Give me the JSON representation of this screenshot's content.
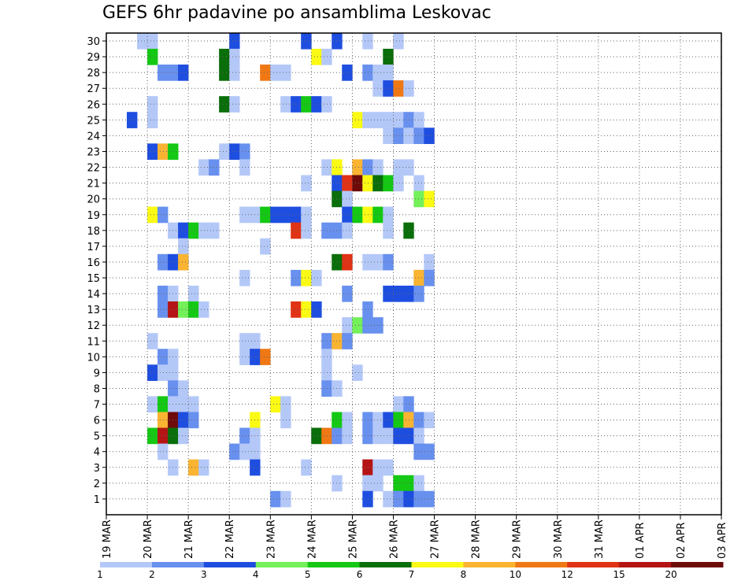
{
  "chart_data": {
    "type": "heatmap",
    "title": "GEFS 6hr padavine po ansamblima Leskovac",
    "x_tick_labels": [
      "19 MAR",
      "20 MAR",
      "21 MAR",
      "22 MAR",
      "23 MAR",
      "24 MAR",
      "25 MAR",
      "26 MAR",
      "27 MAR",
      "28 MAR",
      "29 MAR",
      "30 MAR",
      "31 MAR",
      "01 APR",
      "02 APR",
      "03 APR"
    ],
    "y_ticks": [
      1,
      2,
      3,
      4,
      5,
      6,
      7,
      8,
      9,
      10,
      11,
      12,
      13,
      14,
      15,
      16,
      17,
      18,
      19,
      20,
      21,
      22,
      23,
      24,
      25,
      26,
      27,
      28,
      29,
      30
    ],
    "ylim": [
      0,
      30.5
    ],
    "steps_per_day": 4,
    "grid": true,
    "legend": {
      "placement": "bottom",
      "labels": [
        "1",
        "2",
        "3",
        "4",
        "5",
        "6",
        "7",
        "8",
        "10",
        "12",
        "15",
        "20"
      ],
      "colors": [
        "#b4c8f8",
        "#6890ee",
        "#1e4ee0",
        "#73f05a",
        "#14c814",
        "#0a6e0a",
        "#fafa14",
        "#fab432",
        "#f07814",
        "#e03214",
        "#b41414",
        "#6e0a0a"
      ]
    },
    "cells": [
      [
        30,
        3,
        1
      ],
      [
        30,
        4,
        1
      ],
      [
        30,
        12,
        3
      ],
      [
        30,
        19,
        3
      ],
      [
        30,
        22,
        3
      ],
      [
        30,
        25,
        1
      ],
      [
        30,
        28,
        1
      ],
      [
        29,
        4,
        5
      ],
      [
        29,
        11,
        6
      ],
      [
        29,
        12,
        1
      ],
      [
        29,
        20,
        7
      ],
      [
        29,
        21,
        1
      ],
      [
        29,
        27,
        6
      ],
      [
        28,
        5,
        2
      ],
      [
        28,
        6,
        2
      ],
      [
        28,
        7,
        3
      ],
      [
        28,
        11,
        6
      ],
      [
        28,
        12,
        1
      ],
      [
        28,
        15,
        10
      ],
      [
        28,
        16,
        1
      ],
      [
        28,
        17,
        1
      ],
      [
        28,
        23,
        3
      ],
      [
        28,
        25,
        2
      ],
      [
        28,
        26,
        1
      ],
      [
        28,
        27,
        1
      ],
      [
        27,
        26,
        1
      ],
      [
        27,
        27,
        3
      ],
      [
        27,
        28,
        10
      ],
      [
        27,
        29,
        1
      ],
      [
        26,
        4,
        1
      ],
      [
        26,
        11,
        6
      ],
      [
        26,
        12,
        1
      ],
      [
        26,
        17,
        1
      ],
      [
        26,
        18,
        3
      ],
      [
        26,
        19,
        5
      ],
      [
        26,
        20,
        3
      ],
      [
        26,
        21,
        1
      ],
      [
        25,
        2,
        3
      ],
      [
        25,
        4,
        1
      ],
      [
        25,
        24,
        7
      ],
      [
        25,
        25,
        1
      ],
      [
        25,
        26,
        1
      ],
      [
        25,
        27,
        1
      ],
      [
        25,
        28,
        1
      ],
      [
        25,
        29,
        2
      ],
      [
        25,
        30,
        1
      ],
      [
        24,
        27,
        1
      ],
      [
        24,
        28,
        2
      ],
      [
        24,
        29,
        1
      ],
      [
        24,
        30,
        2
      ],
      [
        24,
        31,
        3
      ],
      [
        23,
        4,
        3
      ],
      [
        23,
        5,
        8
      ],
      [
        23,
        6,
        5
      ],
      [
        23,
        11,
        1
      ],
      [
        23,
        12,
        3
      ],
      [
        23,
        13,
        2
      ],
      [
        22,
        9,
        1
      ],
      [
        22,
        10,
        2
      ],
      [
        22,
        13,
        1
      ],
      [
        22,
        21,
        1
      ],
      [
        22,
        22,
        7
      ],
      [
        22,
        24,
        8
      ],
      [
        22,
        25,
        2
      ],
      [
        22,
        26,
        1
      ],
      [
        22,
        28,
        1
      ],
      [
        22,
        29,
        1
      ],
      [
        21,
        19,
        1
      ],
      [
        21,
        22,
        3
      ],
      [
        21,
        23,
        12
      ],
      [
        21,
        24,
        20
      ],
      [
        21,
        25,
        7
      ],
      [
        21,
        26,
        6
      ],
      [
        21,
        27,
        5
      ],
      [
        21,
        28,
        1
      ],
      [
        21,
        30,
        1
      ],
      [
        20,
        22,
        6
      ],
      [
        20,
        23,
        1
      ],
      [
        20,
        30,
        4
      ],
      [
        20,
        31,
        7
      ],
      [
        19,
        4,
        7
      ],
      [
        19,
        5,
        2
      ],
      [
        19,
        13,
        1
      ],
      [
        19,
        14,
        1
      ],
      [
        19,
        15,
        5
      ],
      [
        19,
        16,
        3
      ],
      [
        19,
        17,
        3
      ],
      [
        19,
        18,
        3
      ],
      [
        19,
        19,
        1
      ],
      [
        19,
        23,
        3
      ],
      [
        19,
        24,
        5
      ],
      [
        19,
        25,
        7
      ],
      [
        19,
        26,
        5
      ],
      [
        19,
        27,
        1
      ],
      [
        18,
        6,
        1
      ],
      [
        18,
        7,
        3
      ],
      [
        18,
        8,
        5
      ],
      [
        18,
        9,
        1
      ],
      [
        18,
        10,
        1
      ],
      [
        18,
        18,
        12
      ],
      [
        18,
        19,
        1
      ],
      [
        18,
        21,
        2
      ],
      [
        18,
        22,
        2
      ],
      [
        18,
        23,
        1
      ],
      [
        18,
        27,
        1
      ],
      [
        18,
        29,
        6
      ],
      [
        17,
        7,
        1
      ],
      [
        17,
        15,
        1
      ],
      [
        16,
        5,
        2
      ],
      [
        16,
        6,
        3
      ],
      [
        16,
        7,
        8
      ],
      [
        16,
        22,
        6
      ],
      [
        16,
        23,
        12
      ],
      [
        16,
        25,
        1
      ],
      [
        16,
        26,
        1
      ],
      [
        16,
        27,
        2
      ],
      [
        16,
        31,
        1
      ],
      [
        15,
        13,
        1
      ],
      [
        15,
        18,
        2
      ],
      [
        15,
        19,
        7
      ],
      [
        15,
        20,
        1
      ],
      [
        15,
        30,
        8
      ],
      [
        15,
        31,
        2
      ],
      [
        14,
        5,
        2
      ],
      [
        14,
        6,
        1
      ],
      [
        14,
        8,
        1
      ],
      [
        14,
        23,
        2
      ],
      [
        14,
        27,
        3
      ],
      [
        14,
        28,
        3
      ],
      [
        14,
        29,
        3
      ],
      [
        14,
        30,
        2
      ],
      [
        13,
        5,
        2
      ],
      [
        13,
        6,
        15
      ],
      [
        13,
        7,
        4
      ],
      [
        13,
        8,
        5
      ],
      [
        13,
        9,
        1
      ],
      [
        13,
        18,
        12
      ],
      [
        13,
        19,
        7
      ],
      [
        13,
        20,
        3
      ],
      [
        13,
        25,
        2
      ],
      [
        12,
        23,
        1
      ],
      [
        12,
        24,
        4
      ],
      [
        12,
        25,
        2
      ],
      [
        12,
        26,
        2
      ],
      [
        11,
        4,
        1
      ],
      [
        11,
        13,
        1
      ],
      [
        11,
        14,
        1
      ],
      [
        11,
        21,
        2
      ],
      [
        11,
        22,
        8
      ],
      [
        11,
        23,
        2
      ],
      [
        10,
        5,
        2
      ],
      [
        10,
        6,
        1
      ],
      [
        10,
        13,
        1
      ],
      [
        10,
        14,
        3
      ],
      [
        10,
        15,
        10
      ],
      [
        10,
        21,
        1
      ],
      [
        9,
        4,
        3
      ],
      [
        9,
        5,
        1
      ],
      [
        9,
        6,
        1
      ],
      [
        9,
        21,
        1
      ],
      [
        9,
        24,
        1
      ],
      [
        8,
        6,
        2
      ],
      [
        8,
        7,
        1
      ],
      [
        8,
        21,
        2
      ],
      [
        8,
        22,
        1
      ],
      [
        7,
        4,
        1
      ],
      [
        7,
        5,
        5
      ],
      [
        7,
        6,
        1
      ],
      [
        7,
        7,
        1
      ],
      [
        7,
        8,
        1
      ],
      [
        7,
        16,
        7
      ],
      [
        7,
        17,
        1
      ],
      [
        7,
        28,
        1
      ],
      [
        7,
        29,
        2
      ],
      [
        6,
        5,
        8
      ],
      [
        6,
        6,
        20
      ],
      [
        6,
        7,
        3
      ],
      [
        6,
        8,
        2
      ],
      [
        6,
        14,
        7
      ],
      [
        6,
        17,
        1
      ],
      [
        6,
        22,
        5
      ],
      [
        6,
        23,
        1
      ],
      [
        6,
        25,
        2
      ],
      [
        6,
        26,
        1
      ],
      [
        6,
        27,
        3
      ],
      [
        6,
        28,
        5
      ],
      [
        6,
        29,
        8
      ],
      [
        6,
        30,
        2
      ],
      [
        6,
        31,
        1
      ],
      [
        5,
        4,
        5
      ],
      [
        5,
        5,
        15
      ],
      [
        5,
        6,
        6
      ],
      [
        5,
        7,
        1
      ],
      [
        5,
        13,
        2
      ],
      [
        5,
        14,
        1
      ],
      [
        5,
        20,
        6
      ],
      [
        5,
        21,
        10
      ],
      [
        5,
        22,
        2
      ],
      [
        5,
        23,
        1
      ],
      [
        5,
        25,
        2
      ],
      [
        5,
        26,
        1
      ],
      [
        5,
        27,
        1
      ],
      [
        5,
        28,
        3
      ],
      [
        5,
        29,
        3
      ],
      [
        5,
        30,
        1
      ],
      [
        4,
        5,
        1
      ],
      [
        4,
        12,
        2
      ],
      [
        4,
        13,
        1
      ],
      [
        4,
        14,
        1
      ],
      [
        4,
        30,
        2
      ],
      [
        4,
        31,
        2
      ],
      [
        3,
        6,
        1
      ],
      [
        3,
        8,
        8
      ],
      [
        3,
        9,
        1
      ],
      [
        3,
        14,
        3
      ],
      [
        3,
        19,
        1
      ],
      [
        3,
        25,
        15
      ],
      [
        3,
        26,
        1
      ],
      [
        3,
        27,
        1
      ],
      [
        2,
        22,
        1
      ],
      [
        2,
        25,
        1
      ],
      [
        2,
        26,
        1
      ],
      [
        2,
        28,
        5
      ],
      [
        2,
        29,
        5
      ],
      [
        2,
        30,
        1
      ],
      [
        1,
        16,
        2
      ],
      [
        1,
        17,
        1
      ],
      [
        1,
        25,
        3
      ],
      [
        1,
        27,
        1
      ],
      [
        1,
        28,
        2
      ],
      [
        1,
        29,
        3
      ],
      [
        1,
        30,
        2
      ],
      [
        1,
        31,
        2
      ]
    ]
  }
}
